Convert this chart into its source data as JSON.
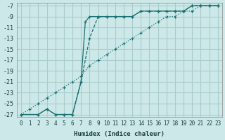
{
  "xlabel": "Humidex (Indice chaleur)",
  "bg_color": "#cce8e8",
  "grid_color": "#aacccc",
  "line_color": "#1a7070",
  "xlim_min": -0.5,
  "xlim_max": 23.5,
  "ylim_min": -27.5,
  "ylim_max": -6.5,
  "xticks": [
    0,
    1,
    2,
    3,
    4,
    5,
    6,
    7,
    8,
    9,
    10,
    11,
    12,
    13,
    14,
    15,
    16,
    17,
    18,
    19,
    20,
    21,
    22,
    23
  ],
  "yticks": [
    -27,
    -25,
    -23,
    -21,
    -19,
    -17,
    -15,
    -13,
    -11,
    -9,
    -7
  ],
  "curve1_x": [
    0,
    1,
    2,
    3,
    4,
    5,
    6,
    7,
    8,
    9,
    10,
    11,
    12,
    13,
    14,
    15,
    16,
    17,
    18,
    19,
    20,
    21,
    22,
    23
  ],
  "curve1_y": [
    -27,
    -26,
    -25,
    -24,
    -23,
    -22,
    -21,
    -20,
    -18,
    -17,
    -16,
    -15,
    -14,
    -13,
    -12,
    -11,
    -10,
    -9,
    -9,
    -8,
    -8,
    -7,
    -7,
    -7
  ],
  "curve2_x": [
    0,
    2,
    3,
    4,
    5,
    6,
    7,
    8,
    9,
    10,
    11,
    12,
    13,
    14,
    15,
    16,
    17,
    18,
    19,
    20,
    21,
    22,
    23
  ],
  "curve2_y": [
    -27,
    -27,
    -26,
    -27,
    -27,
    -27,
    -21,
    -13,
    -9,
    -9,
    -9,
    -9,
    -9,
    -8,
    -8,
    -8,
    -8,
    -8,
    -8,
    -7,
    -7,
    -7,
    -7
  ],
  "curve3_x": [
    0,
    2,
    3,
    4,
    5,
    6,
    7,
    7.5,
    8,
    9,
    10,
    11,
    12,
    13,
    14,
    15,
    16,
    17,
    18,
    19,
    20,
    21,
    22,
    23
  ],
  "curve3_y": [
    -27,
    -27,
    -26,
    -27,
    -27,
    -27,
    -21,
    -10,
    -9,
    -9,
    -9,
    -9,
    -9,
    -9,
    -8,
    -8,
    -8,
    -8,
    -8,
    -8,
    -7,
    -7,
    -7,
    -7
  ]
}
